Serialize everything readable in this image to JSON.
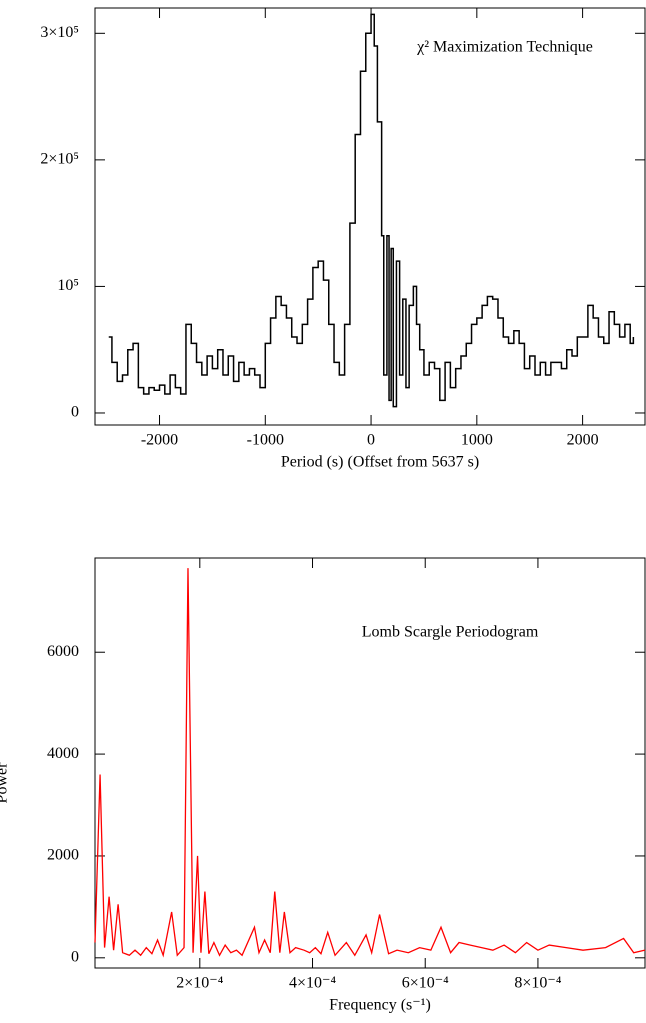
{
  "chart_data": [
    {
      "type": "line",
      "step": true,
      "color": "#000000",
      "annotation": "χ² Maximization Technique",
      "x_label": "Period (s) (Offset from 5637 s)",
      "xlim": [
        -2610,
        2590
      ],
      "ylim": [
        -9500,
        320000
      ],
      "xticks": [
        -2000,
        -1000,
        0,
        1000,
        2000
      ],
      "yticks": [
        {
          "value": 0,
          "label": "0"
        },
        {
          "value": 100000,
          "label": "10⁵"
        },
        {
          "value": 200000,
          "label": "2×10⁵"
        },
        {
          "value": 300000,
          "label": "3×10⁵"
        }
      ],
      "x": [
        -2480,
        -2450,
        -2400,
        -2350,
        -2300,
        -2250,
        -2200,
        -2150,
        -2100,
        -2050,
        -2000,
        -1950,
        -1900,
        -1850,
        -1800,
        -1750,
        -1700,
        -1650,
        -1600,
        -1550,
        -1500,
        -1450,
        -1400,
        -1350,
        -1300,
        -1250,
        -1200,
        -1150,
        -1100,
        -1050,
        -1000,
        -950,
        -900,
        -850,
        -800,
        -750,
        -700,
        -650,
        -600,
        -550,
        -500,
        -450,
        -400,
        -350,
        -300,
        -250,
        -200,
        -150,
        -100,
        -50,
        0,
        30,
        60,
        100,
        120,
        150,
        170,
        190,
        210,
        240,
        270,
        300,
        330,
        360,
        400,
        430,
        460,
        500,
        550,
        600,
        650,
        700,
        750,
        800,
        850,
        900,
        950,
        1000,
        1050,
        1100,
        1150,
        1200,
        1250,
        1300,
        1350,
        1400,
        1450,
        1500,
        1550,
        1600,
        1650,
        1700,
        1750,
        1800,
        1850,
        1900,
        1950,
        2000,
        2050,
        2100,
        2150,
        2200,
        2250,
        2300,
        2350,
        2400,
        2450,
        2480
      ],
      "values": [
        60000,
        40000,
        25000,
        30000,
        50000,
        55000,
        20000,
        15000,
        20000,
        18000,
        22000,
        15000,
        30000,
        20000,
        15000,
        70000,
        55000,
        40000,
        30000,
        45000,
        35000,
        50000,
        30000,
        45000,
        25000,
        40000,
        30000,
        35000,
        30000,
        20000,
        55000,
        75000,
        92000,
        85000,
        75000,
        60000,
        55000,
        70000,
        90000,
        115000,
        120000,
        105000,
        70000,
        40000,
        30000,
        70000,
        150000,
        220000,
        270000,
        300000,
        315000,
        290000,
        230000,
        140000,
        30000,
        140000,
        10000,
        130000,
        5000,
        120000,
        30000,
        90000,
        20000,
        85000,
        100000,
        70000,
        50000,
        30000,
        40000,
        35000,
        10000,
        40000,
        20000,
        35000,
        45000,
        55000,
        70000,
        75000,
        85000,
        92000,
        90000,
        75000,
        60000,
        55000,
        65000,
        55000,
        35000,
        45000,
        30000,
        40000,
        30000,
        40000,
        40000,
        35000,
        50000,
        45000,
        60000,
        60000,
        85000,
        75000,
        60000,
        55000,
        80000,
        70000,
        60000,
        70000,
        55000,
        60000
      ]
    },
    {
      "type": "line",
      "step": false,
      "color": "#ff0000",
      "annotation": "Lomb Scargle Periodogram",
      "x_label": "Frequency (s⁻¹)",
      "y_label": "Power",
      "xlim": [
        1.4e-05,
        0.00099
      ],
      "ylim": [
        -200,
        7850
      ],
      "xticks": [
        {
          "value": 0.0002,
          "label": "2×10⁻⁴"
        },
        {
          "value": 0.0004,
          "label": "4×10⁻⁴"
        },
        {
          "value": 0.0006,
          "label": "6×10⁻⁴"
        },
        {
          "value": 0.0008,
          "label": "8×10⁻⁴"
        }
      ],
      "yticks": [
        0,
        2000,
        4000,
        6000
      ],
      "x": [
        1.4e-05,
        2.3e-05,
        3.1e-05,
        3.9e-05,
        4.7e-05,
        5.5e-05,
        6.3e-05,
        7.5e-05,
        8.5e-05,
        9.5e-05,
        0.000105,
        0.000115,
        0.000125,
        0.000135,
        0.00015,
        0.00016,
        0.000172,
        0.000179,
        0.000188,
        0.000196,
        0.000202,
        0.000209,
        0.000216,
        0.000225,
        0.000235,
        0.000245,
        0.000255,
        0.000265,
        0.000275,
        0.000297,
        0.000305,
        0.000315,
        0.000325,
        0.000333,
        0.000342,
        0.00035,
        0.00036,
        0.00037,
        0.000385,
        0.000395,
        0.000405,
        0.000415,
        0.000427,
        0.00044,
        0.00046,
        0.000475,
        0.000495,
        0.000505,
        0.000519,
        0.000535,
        0.00055,
        0.00057,
        0.00059,
        0.00061,
        0.000628,
        0.000645,
        0.00066,
        0.00068,
        0.0007,
        0.00072,
        0.00074,
        0.00076,
        0.00078,
        0.0008,
        0.00082,
        0.00085,
        0.00088,
        0.00092,
        0.000952,
        0.00097,
        0.00099
      ],
      "values": [
        300,
        3600,
        200,
        1200,
        150,
        1050,
        100,
        50,
        150,
        50,
        200,
        80,
        350,
        50,
        900,
        50,
        200,
        7650,
        100,
        2000,
        100,
        1300,
        80,
        300,
        50,
        250,
        100,
        150,
        50,
        600,
        100,
        350,
        100,
        1300,
        100,
        900,
        100,
        200,
        150,
        100,
        200,
        80,
        500,
        50,
        300,
        50,
        450,
        100,
        850,
        80,
        150,
        100,
        200,
        150,
        600,
        100,
        300,
        250,
        200,
        150,
        250,
        100,
        300,
        150,
        250,
        200,
        150,
        200,
        380,
        100,
        150
      ]
    }
  ]
}
